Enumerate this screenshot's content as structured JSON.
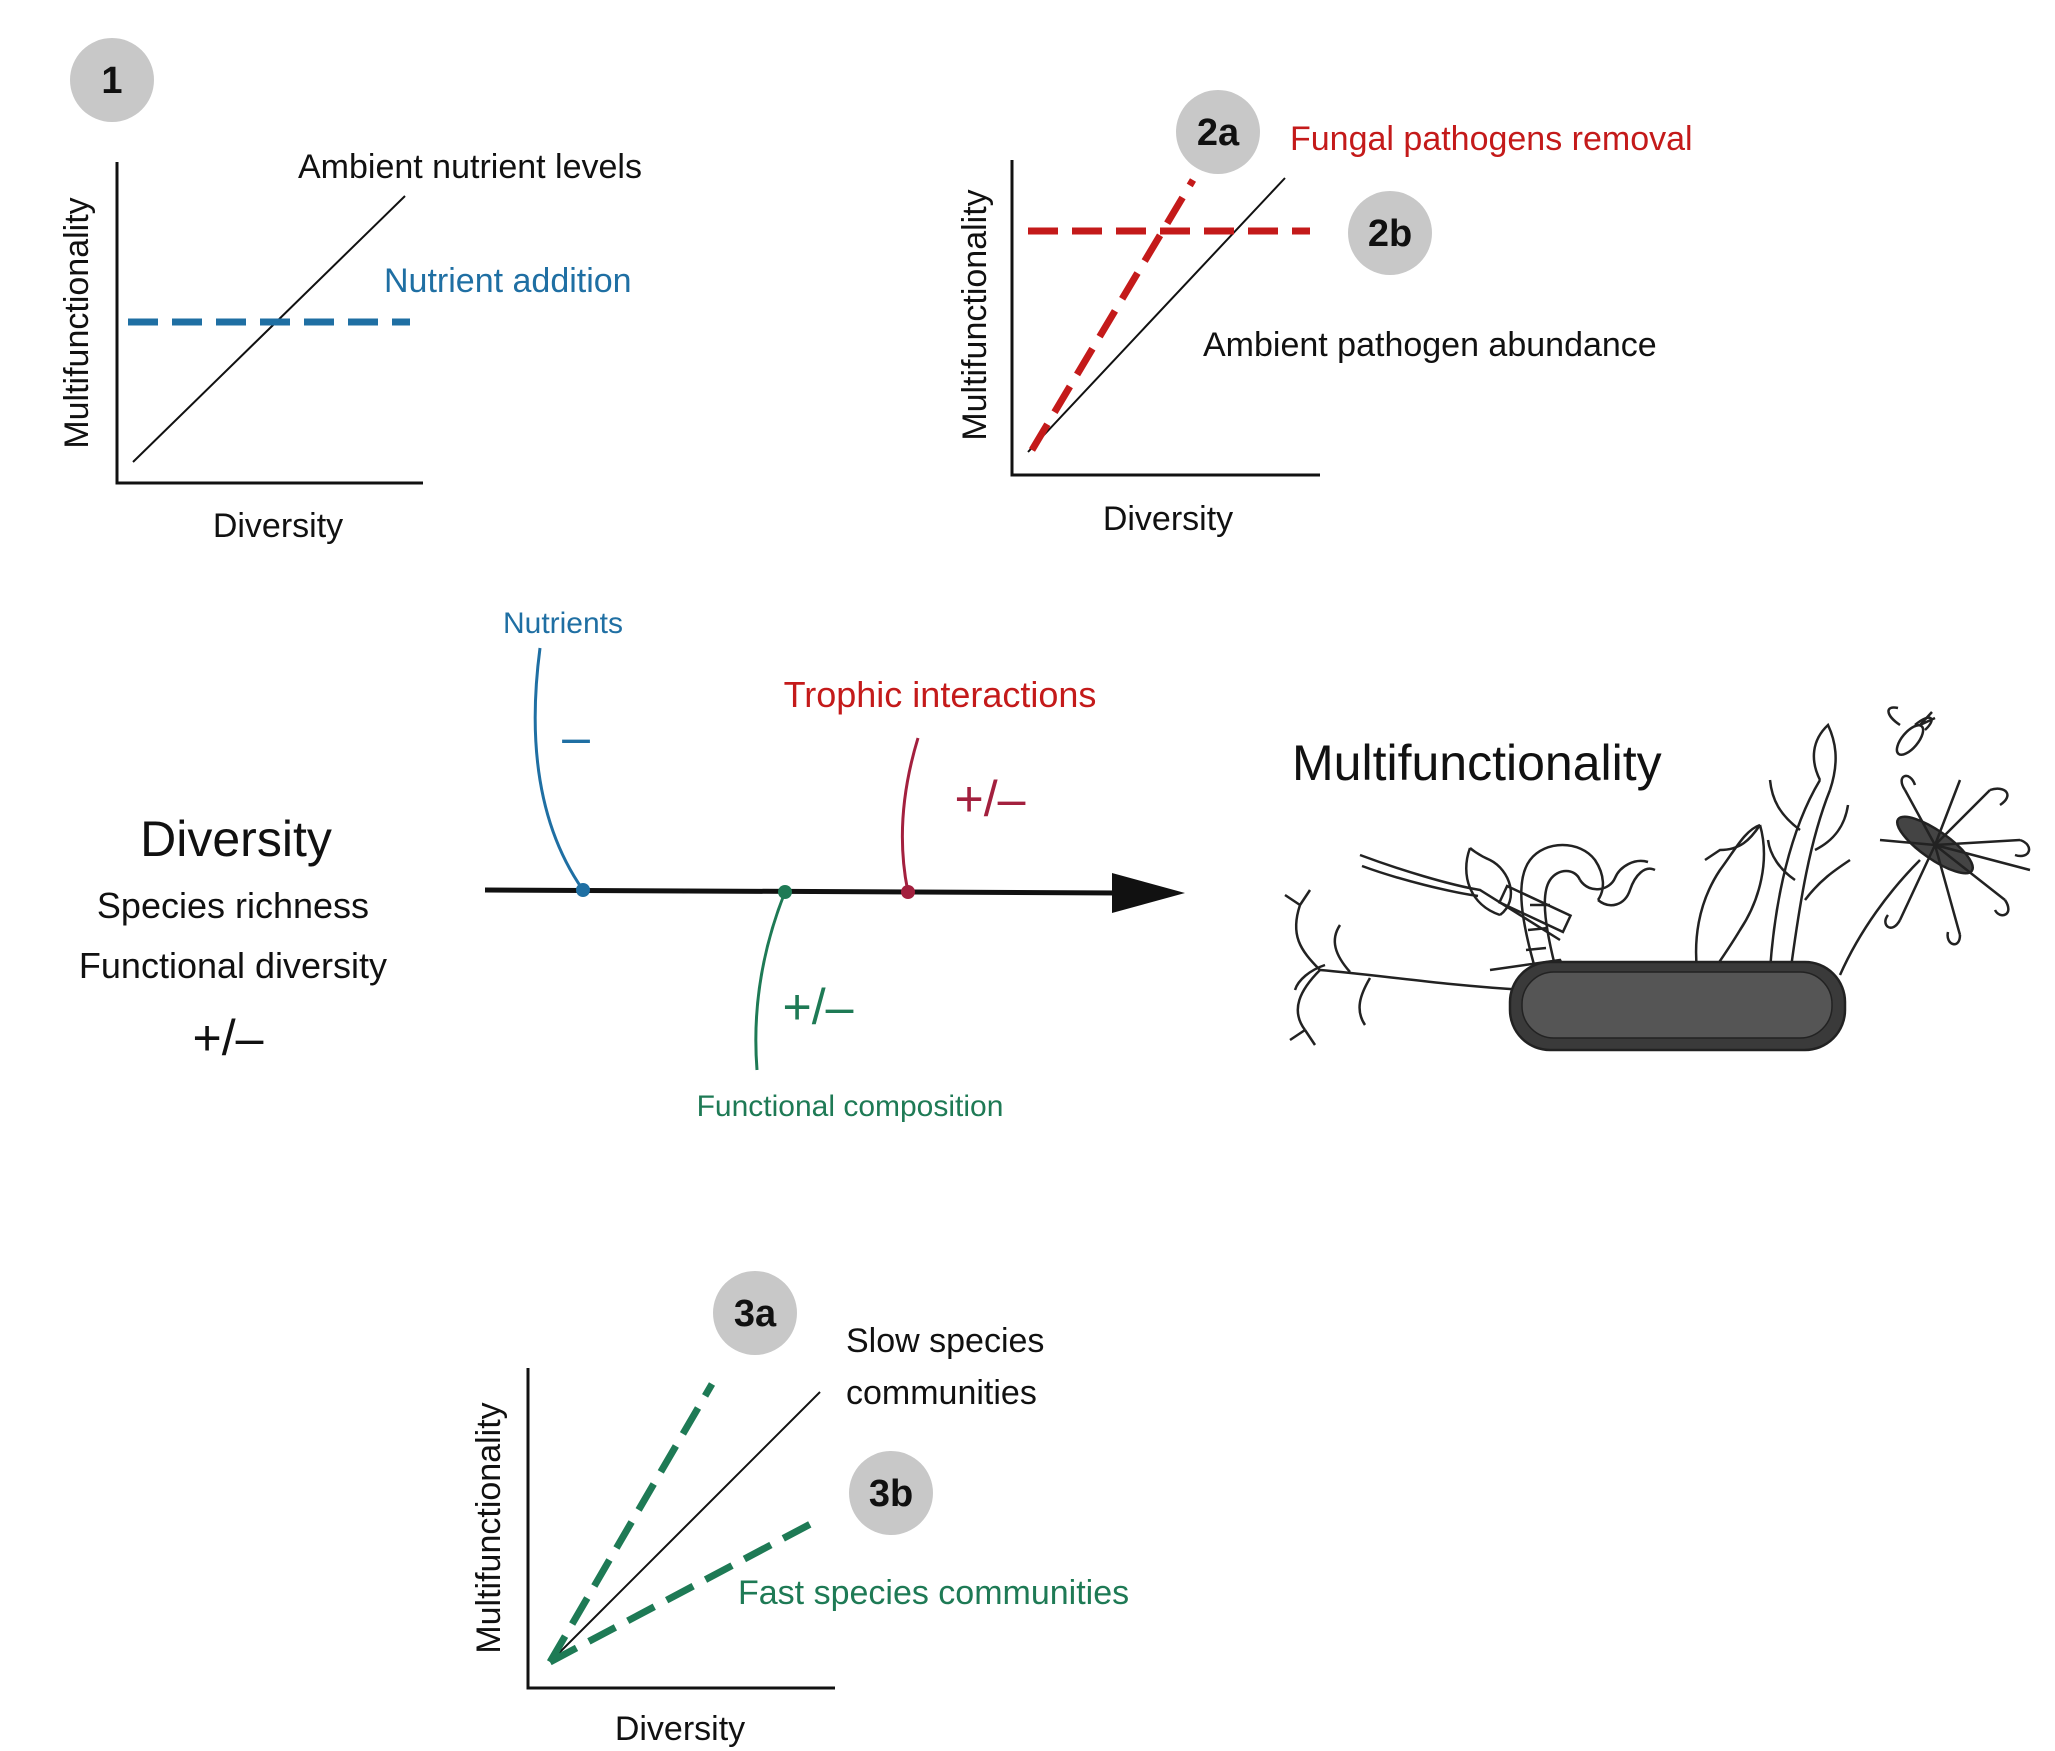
{
  "colors": {
    "blue": "#1f6fa3",
    "red": "#c41a1a",
    "dark_red": "#a3203e",
    "green": "#1e7a55",
    "black": "#111111",
    "badge_fill": "#c8c8c8"
  },
  "panel1": {
    "badge": "1",
    "ylabel": "Multifunctionality",
    "xlabel": "Diversity",
    "solid_label": "Ambient nutrient levels",
    "dashed_label": "Nutrient addition"
  },
  "panel2": {
    "badge_a": "2a",
    "badge_b": "2b",
    "ylabel": "Multifunctionality",
    "xlabel": "Diversity",
    "dashed_a_label": "Fungal pathogens removal",
    "solid_label": "Ambient pathogen abundance"
  },
  "panel3": {
    "badge_a": "3a",
    "badge_b": "3b",
    "ylabel": "Multifunctionality",
    "xlabel": "Diversity",
    "solid_label_line1": "Slow species",
    "solid_label_line2": "communities",
    "dashed_b_label": "Fast species communities"
  },
  "center": {
    "diversity_title": "Diversity",
    "diversity_sub1": "Species richness",
    "diversity_sub2": "Functional diversity",
    "diversity_sign": "+/–",
    "nutrients_label": "Nutrients",
    "nutrients_sign": "–",
    "trophic_label": "Trophic interactions",
    "trophic_sign": "+/–",
    "functional_label": "Functional composition",
    "functional_sign": "+/–",
    "outcome_title": "Multifunctionality"
  },
  "illustration": {
    "name": "multitool-sketch",
    "parts": [
      "roots",
      "scissors",
      "earthworm",
      "leaf",
      "grass",
      "daisy",
      "insect",
      "soil-handle"
    ]
  }
}
